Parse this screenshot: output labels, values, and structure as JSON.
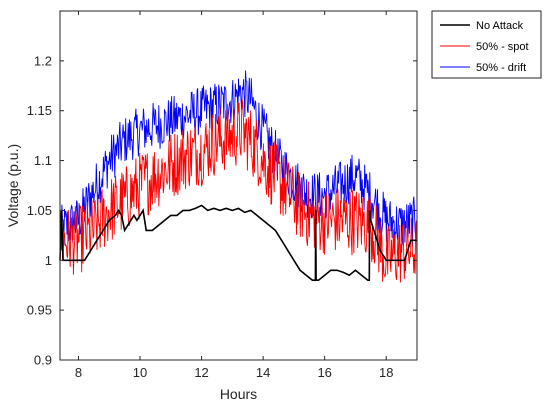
{
  "chart_data": {
    "type": "line",
    "xlabel": "Hours",
    "ylabel": "Voltage (p.u.)",
    "xlim": [
      7.4,
      19.0
    ],
    "ylim": [
      0.9,
      1.25
    ],
    "xticks": [
      8,
      10,
      12,
      14,
      16,
      18
    ],
    "yticks": [
      0.9,
      0.95,
      1.0,
      1.05,
      1.1,
      1.15,
      1.2
    ],
    "xtick_labels": [
      "8",
      "10",
      "12",
      "14",
      "16",
      "18"
    ],
    "ytick_labels": [
      "0.9",
      "0.95",
      "1",
      "1.05",
      "1.1",
      "1.15",
      "1.2"
    ],
    "grid": false,
    "legend_position": "outside-top-right",
    "series": [
      {
        "name": "No Attack",
        "color": "#000000",
        "x": [
          7.4,
          7.45,
          7.5,
          7.55,
          7.6,
          8.0,
          8.2,
          8.4,
          8.6,
          8.8,
          9.0,
          9.2,
          9.3,
          9.4,
          9.5,
          9.6,
          9.7,
          9.8,
          9.9,
          10.0,
          10.1,
          10.2,
          10.4,
          10.6,
          10.8,
          11.0,
          11.2,
          11.4,
          11.6,
          11.8,
          12.0,
          12.2,
          12.4,
          12.6,
          12.8,
          13.0,
          13.2,
          13.4,
          13.6,
          13.8,
          14.0,
          14.2,
          14.4,
          14.6,
          14.8,
          15.0,
          15.2,
          15.4,
          15.6,
          15.7,
          15.71,
          15.72,
          15.75,
          15.8,
          16.0,
          16.2,
          16.4,
          16.6,
          16.8,
          17.0,
          17.2,
          17.4,
          17.45,
          17.46,
          17.5,
          17.6,
          17.8,
          18.0,
          18.2,
          18.4,
          18.6,
          18.8,
          19.0
        ],
        "y": [
          1.0,
          1.05,
          1.0,
          1.0,
          1.0,
          1.0,
          1.0,
          1.01,
          1.02,
          1.03,
          1.04,
          1.045,
          1.05,
          1.045,
          1.03,
          1.035,
          1.04,
          1.045,
          1.04,
          1.045,
          1.05,
          1.03,
          1.03,
          1.035,
          1.04,
          1.045,
          1.045,
          1.05,
          1.05,
          1.052,
          1.055,
          1.05,
          1.052,
          1.05,
          1.052,
          1.05,
          1.052,
          1.048,
          1.05,
          1.045,
          1.04,
          1.035,
          1.03,
          1.02,
          1.01,
          1.0,
          0.99,
          0.985,
          0.98,
          0.98,
          1.05,
          0.98,
          0.98,
          0.98,
          0.985,
          0.99,
          0.99,
          0.988,
          0.985,
          0.99,
          0.985,
          0.98,
          0.98,
          1.05,
          1.04,
          1.03,
          1.01,
          1.0,
          1.0,
          1.0,
          1.0,
          1.02,
          1.02
        ]
      },
      {
        "name": "50% - spot",
        "color": "#ff0000",
        "x": [
          7.4,
          8.0,
          8.5,
          9.0,
          9.5,
          10.0,
          10.5,
          11.0,
          11.5,
          12.0,
          12.5,
          13.0,
          13.3,
          13.6,
          14.0,
          14.5,
          15.0,
          15.5,
          16.0,
          16.5,
          17.0,
          17.5,
          18.0,
          18.5,
          19.0
        ],
        "y": [
          1.02,
          1.02,
          1.03,
          1.05,
          1.06,
          1.075,
          1.085,
          1.095,
          1.105,
          1.11,
          1.12,
          1.125,
          1.13,
          1.12,
          1.1,
          1.08,
          1.06,
          1.045,
          1.04,
          1.04,
          1.04,
          1.035,
          1.0,
          1.01,
          1.01
        ]
      },
      {
        "name": "50% - drift",
        "color": "#0000ff",
        "x": [
          7.4,
          8.0,
          8.5,
          9.0,
          9.5,
          10.0,
          10.5,
          11.0,
          11.5,
          12.0,
          12.5,
          13.0,
          13.3,
          13.6,
          14.0,
          14.5,
          15.0,
          15.5,
          16.0,
          16.5,
          17.0,
          17.5,
          18.0,
          18.5,
          19.0
        ],
        "y": [
          1.03,
          1.04,
          1.07,
          1.1,
          1.12,
          1.13,
          1.135,
          1.14,
          1.145,
          1.15,
          1.155,
          1.16,
          1.17,
          1.16,
          1.13,
          1.1,
          1.08,
          1.065,
          1.065,
          1.075,
          1.085,
          1.065,
          1.04,
          1.035,
          1.04
        ]
      }
    ]
  }
}
